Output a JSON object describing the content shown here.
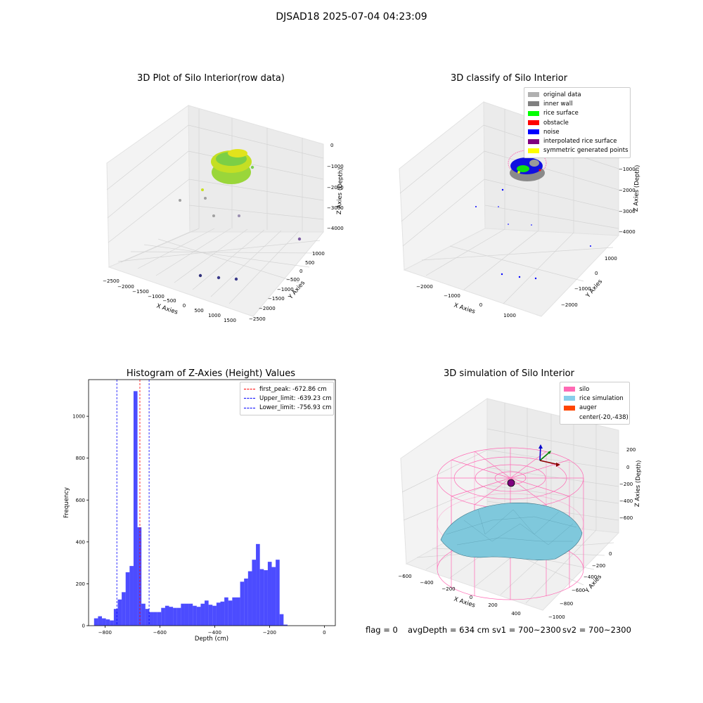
{
  "suptitle": "DJSAD18 2025-07-04 04:23:09",
  "chart_data": [
    {
      "type": "scatter3d",
      "title": "3D Plot of Silo Interior(row data)",
      "xlabel": "X Axies",
      "ylabel": "Y Axies",
      "zlabel": "Z Axies (Depth)",
      "xticks": [
        "−2500",
        "−2000",
        "−1500",
        "−1000",
        "−500",
        "0",
        "500",
        "1000",
        "1500"
      ],
      "yticks": [
        "1000",
        "500",
        "0",
        "−500",
        "−1000",
        "−1500",
        "−2000",
        "−2500"
      ],
      "zticks": [
        "0",
        "−1000",
        "−2000",
        "−3000",
        "−4000"
      ],
      "colormap": "viridis"
    },
    {
      "type": "scatter3d",
      "title": "3D classify of Silo Interior",
      "xlabel": "X Axies",
      "ylabel": "Y Axies",
      "zlabel": "Z Axies (Depth)",
      "xticks": [
        "−2000",
        "−1000",
        "0",
        "1000"
      ],
      "yticks": [
        "1000",
        "0",
        "−1000",
        "−2000"
      ],
      "zticks": [
        "0",
        "−1000",
        "−2000",
        "−3000",
        "−4000"
      ],
      "legend": [
        {
          "label": "original data",
          "color": "#b0b0b0"
        },
        {
          "label": "inner wall",
          "color": "#808080"
        },
        {
          "label": "rice surface",
          "color": "#00ff00"
        },
        {
          "label": "obstacle",
          "color": "#ff0000"
        },
        {
          "label": "noise",
          "color": "#0000ff"
        },
        {
          "label": "interpolated rice surface",
          "color": "#800080"
        },
        {
          "label": "symmetric generated points",
          "color": "#ffff00"
        }
      ]
    },
    {
      "type": "bar",
      "title": "Histogram of Z-Axies (Height) Values",
      "xlabel": "Depth (cm)",
      "ylabel": "Frequency",
      "xlim": [
        -860,
        40
      ],
      "ylim": [
        0,
        1175
      ],
      "xticks": [
        -800,
        -600,
        -400,
        -200,
        0
      ],
      "xtick_labels": [
        "−800",
        "−600",
        "−400",
        "−200",
        "0"
      ],
      "yticks": [
        0,
        200,
        400,
        600,
        800,
        1000
      ],
      "bin_start": -840,
      "bin_width": 14.4,
      "values": [
        35,
        45,
        35,
        30,
        25,
        80,
        125,
        160,
        255,
        285,
        1120,
        470,
        105,
        80,
        65,
        65,
        65,
        85,
        95,
        90,
        85,
        85,
        105,
        105,
        105,
        95,
        90,
        105,
        120,
        100,
        95,
        110,
        115,
        135,
        120,
        135,
        135,
        210,
        225,
        260,
        315,
        390,
        270,
        265,
        305,
        280,
        315,
        55,
        5
      ],
      "bar_color": "#0000ff",
      "vlines": [
        {
          "x": -672.86,
          "label": "first_peak: -672.86 cm",
          "color": "#ff0000"
        },
        {
          "x": -639.23,
          "label": "Upper_limit: -639.23 cm",
          "color": "#0000ff"
        },
        {
          "x": -756.93,
          "label": "Lower_limit: -756.93 cm",
          "color": "#0000ff"
        }
      ]
    },
    {
      "type": "surface3d",
      "title": "3D simulation of Silo Interior",
      "xlabel": "X Axies",
      "ylabel": "Y Axies",
      "zlabel": "Z Axies (Depth)",
      "xticks": [
        "−600",
        "−400",
        "−200",
        "0",
        "200",
        "400"
      ],
      "yticks": [
        "0",
        "−200",
        "−400",
        "−600",
        "−800",
        "−1000"
      ],
      "zticks": [
        "200",
        "0",
        "−200",
        "−400",
        "−600"
      ],
      "legend": [
        {
          "label": "silo",
          "color": "#ff69b4"
        },
        {
          "label": "rice simulation",
          "color": "#87ceeb"
        },
        {
          "label": "auger",
          "color": "#ff4500"
        },
        {
          "label": "center(-20,-438)",
          "color": ""
        }
      ]
    }
  ],
  "footer": {
    "flag": "flag = 0",
    "avg": "avgDepth = 634 cm",
    "sv1": "sv1 = 700~2300",
    "sv2": "sv2 = 700~2300"
  }
}
